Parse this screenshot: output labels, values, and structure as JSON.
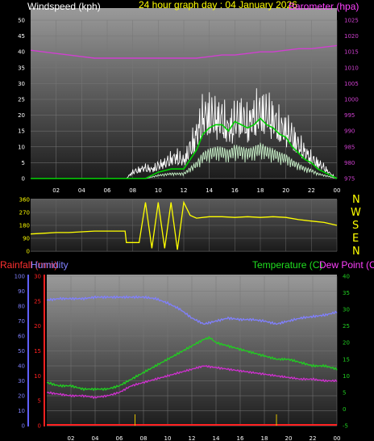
{
  "header": {
    "windspeed_title": "Windspeed (kph)",
    "graph_title": "24 hour graph day : 04 January 2026",
    "barometer_title": "Barometer (hpa)"
  },
  "rainfall_title": "Rainfall (mm)",
  "humidity_title": "Humidity",
  "temperature_title": "Temperature (C)",
  "dewpoint_title": "Dew Point (C)",
  "compass": [
    "N",
    "W",
    "S",
    "E",
    "N"
  ],
  "colors": {
    "wind_gust": "#ffffff",
    "wind_avg": "#00d000",
    "wind_band": "#c8f0c8",
    "barometer": "#d040d0",
    "direction": "#ffff00",
    "rainfall": "#ff2020",
    "humidity": "#8080ff",
    "temperature": "#20d020",
    "dewpoint": "#d030d0",
    "compass": "#ffff00"
  },
  "chart_data": [
    {
      "type": "line",
      "name": "wind-barometer",
      "x_ticks": [
        "02",
        "04",
        "06",
        "08",
        "10",
        "12",
        "14",
        "16",
        "18",
        "20",
        "22",
        "00"
      ],
      "y_left_ticks": [
        "0",
        "5",
        "10",
        "15",
        "20",
        "25",
        "30",
        "35",
        "40",
        "45",
        "50"
      ],
      "y_right_ticks": [
        "975",
        "980",
        "985",
        "990",
        "995",
        "1000",
        "1005",
        "1010",
        "1015",
        "1020",
        "1025"
      ],
      "ylim_left": [
        0,
        50
      ],
      "ylim_right": [
        975,
        1025
      ],
      "xlim": [
        0,
        24
      ],
      "series": [
        {
          "key": "gust",
          "x": [
            0,
            7.5,
            8,
            9,
            9.5,
            10,
            10.5,
            11,
            11.5,
            12,
            12.5,
            13,
            13.5,
            14,
            14.5,
            15,
            15.5,
            16,
            16.5,
            17,
            17.5,
            18,
            18.5,
            19,
            19.5,
            20,
            20.5,
            21,
            21.5,
            22,
            22.5,
            23,
            23.5,
            24
          ],
          "values": [
            0,
            0,
            3,
            5,
            4,
            6,
            7,
            9,
            10,
            8,
            14,
            20,
            28,
            29,
            27,
            27,
            22,
            26,
            28,
            24,
            28,
            30,
            29,
            27,
            23,
            22,
            19,
            15,
            12,
            9,
            7,
            5,
            2,
            0
          ]
        },
        {
          "key": "average",
          "x": [
            0,
            9,
            10,
            11,
            12,
            13,
            13.5,
            14,
            14.5,
            15,
            15.5,
            16,
            16.5,
            17,
            17.5,
            18,
            18.5,
            19,
            19.5,
            20,
            20.5,
            21,
            21.5,
            22,
            22.5,
            23,
            24
          ],
          "values": [
            0,
            0,
            2,
            3,
            3,
            9,
            14,
            16,
            17,
            17,
            15,
            18,
            17,
            16,
            17,
            19,
            17,
            16,
            14,
            13,
            10,
            8,
            6,
            5,
            3,
            2,
            0
          ]
        },
        {
          "key": "barometer",
          "x": [
            0,
            1,
            2,
            3,
            4,
            5,
            6,
            7,
            8,
            9,
            10,
            11,
            12,
            13,
            14,
            15,
            16,
            17,
            18,
            19,
            20,
            21,
            22,
            23,
            24
          ],
          "values": [
            1015.5,
            1015,
            1014.5,
            1014,
            1013.5,
            1013,
            1013,
            1013,
            1013,
            1013,
            1013,
            1013,
            1013,
            1013,
            1013.5,
            1014,
            1014,
            1014.5,
            1015,
            1015,
            1015.5,
            1016,
            1016,
            1016.5,
            1017
          ]
        }
      ]
    },
    {
      "type": "line",
      "name": "wind-direction",
      "x_ticks": [
        "02",
        "04",
        "06",
        "08",
        "10",
        "12",
        "14",
        "16",
        "18",
        "20",
        "22",
        "00"
      ],
      "y_ticks": [
        "0",
        "90",
        "180",
        "270",
        "360"
      ],
      "ylim": [
        0,
        360
      ],
      "xlim": [
        0,
        24
      ],
      "series": [
        {
          "key": "direction",
          "x": [
            0,
            1,
            2,
            3,
            4,
            5,
            6,
            7,
            7.4,
            7.5,
            8,
            8.4,
            8.5,
            9,
            9.5,
            10,
            10.5,
            11,
            11.5,
            12,
            12.5,
            13,
            14,
            15,
            16,
            17,
            18,
            19,
            20,
            21,
            22,
            23,
            24
          ],
          "values": [
            120,
            125,
            130,
            130,
            135,
            140,
            140,
            140,
            140,
            60,
            60,
            60,
            60,
            340,
            20,
            340,
            20,
            340,
            10,
            340,
            250,
            230,
            240,
            240,
            235,
            240,
            235,
            240,
            235,
            220,
            210,
            200,
            180
          ]
        }
      ]
    },
    {
      "type": "line",
      "name": "temperature-humidity",
      "x_ticks": [
        "02",
        "04",
        "06",
        "08",
        "10",
        "12",
        "14",
        "16",
        "18",
        "20",
        "22",
        "00"
      ],
      "y_humidity_ticks": [
        "0",
        "10",
        "20",
        "30",
        "40",
        "50",
        "60",
        "70",
        "80",
        "90",
        "100"
      ],
      "y_rain_ticks": [
        "0",
        "5",
        "10",
        "15",
        "20",
        "25",
        "30"
      ],
      "y_temp_ticks": [
        "-5",
        "0",
        "5",
        "10",
        "15",
        "20",
        "25",
        "30",
        "35",
        "40"
      ],
      "ylim_humidity": [
        0,
        100
      ],
      "ylim_rain": [
        0,
        30
      ],
      "ylim_temp": [
        -5,
        40
      ],
      "xlim": [
        0,
        24
      ],
      "series": [
        {
          "key": "humidity",
          "x": [
            0,
            1,
            2,
            3,
            4,
            5,
            6,
            7,
            8,
            9,
            10,
            11,
            12,
            13,
            14,
            15,
            16,
            17,
            18,
            19,
            20,
            21,
            22,
            23,
            24
          ],
          "values": [
            84,
            85,
            85,
            85,
            86,
            86,
            86,
            86,
            86,
            85,
            82,
            78,
            72,
            68,
            70,
            72,
            71,
            71,
            70,
            68,
            70,
            72,
            73,
            74,
            76
          ]
        },
        {
          "key": "temperature",
          "x": [
            0,
            1,
            2,
            3,
            4,
            5,
            6,
            7,
            8,
            9,
            10,
            11,
            12,
            13,
            13.5,
            14,
            15,
            16,
            17,
            18,
            19,
            20,
            21,
            22,
            23,
            24
          ],
          "values": [
            8,
            7,
            7,
            6,
            6,
            6,
            7,
            9,
            11,
            13,
            15,
            17,
            19,
            21,
            21.5,
            20,
            19,
            18,
            17,
            16,
            15,
            15,
            14,
            13,
            13,
            12
          ]
        },
        {
          "key": "dewpoint",
          "x": [
            0,
            1,
            2,
            3,
            4,
            5,
            6,
            7,
            8,
            9,
            10,
            11,
            12,
            13,
            14,
            15,
            16,
            17,
            18,
            19,
            20,
            21,
            22,
            23,
            24
          ],
          "values": [
            5,
            4.5,
            4,
            4,
            3.5,
            4,
            5,
            7,
            8,
            9,
            10,
            11,
            12,
            13,
            12.5,
            12,
            11.5,
            11,
            10.5,
            10,
            9.5,
            9,
            9,
            8.5,
            8.5
          ]
        },
        {
          "key": "rainfall",
          "x": [
            0,
            24
          ],
          "values": [
            0,
            0
          ]
        }
      ]
    }
  ]
}
